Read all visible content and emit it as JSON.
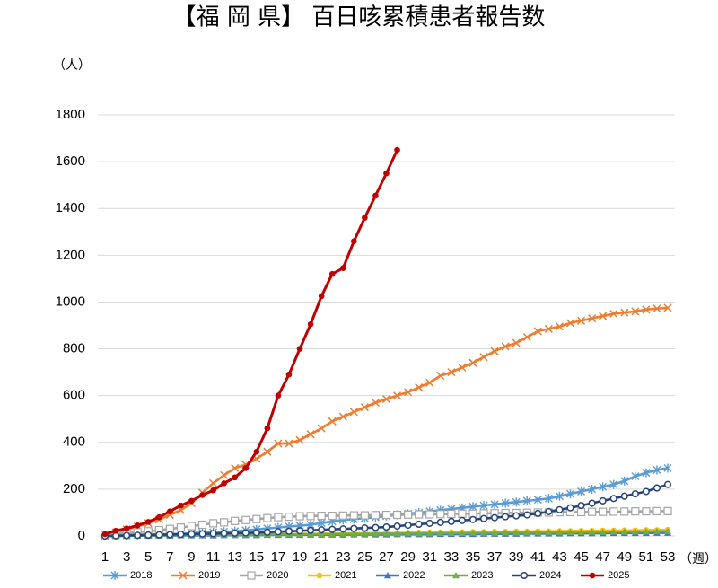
{
  "chart_data": {
    "type": "line",
    "title": "【福 岡 県】 百日咳累積患者報告数",
    "ylabel": "（人）",
    "xlabel": "（週）",
    "x": [
      1,
      2,
      3,
      4,
      5,
      6,
      7,
      8,
      9,
      10,
      11,
      12,
      13,
      14,
      15,
      16,
      17,
      18,
      19,
      20,
      21,
      22,
      23,
      24,
      25,
      26,
      27,
      28,
      29,
      30,
      31,
      32,
      33,
      34,
      35,
      36,
      37,
      38,
      39,
      40,
      41,
      42,
      43,
      44,
      45,
      46,
      47,
      48,
      49,
      50,
      51,
      52,
      53
    ],
    "xlim": [
      1,
      53
    ],
    "xticks": [
      1,
      3,
      5,
      7,
      9,
      11,
      13,
      15,
      17,
      19,
      21,
      23,
      25,
      27,
      29,
      31,
      33,
      35,
      37,
      39,
      41,
      43,
      45,
      47,
      49,
      51,
      53
    ],
    "ylim": [
      0,
      1800
    ],
    "yticks": [
      0,
      200,
      400,
      600,
      800,
      1000,
      1200,
      1400,
      1600,
      1800
    ],
    "grid": true,
    "legend": "bottom",
    "series": [
      {
        "name": "2018",
        "color": "#5b9bd5",
        "marker": "star",
        "values": [
          2,
          3,
          4,
          5,
          6,
          7,
          8,
          10,
          12,
          14,
          16,
          18,
          20,
          24,
          28,
          32,
          36,
          40,
          44,
          48,
          55,
          62,
          68,
          72,
          76,
          80,
          85,
          90,
          95,
          100,
          105,
          110,
          115,
          120,
          125,
          130,
          135,
          140,
          145,
          150,
          155,
          160,
          170,
          180,
          190,
          200,
          210,
          220,
          235,
          255,
          270,
          282,
          290
        ]
      },
      {
        "name": "2019",
        "color": "#ed7d31",
        "marker": "x",
        "values": [
          5,
          15,
          28,
          40,
          55,
          70,
          90,
          110,
          140,
          185,
          225,
          260,
          290,
          305,
          330,
          360,
          395,
          395,
          410,
          435,
          460,
          490,
          510,
          530,
          550,
          570,
          585,
          600,
          615,
          635,
          655,
          685,
          700,
          720,
          740,
          765,
          790,
          810,
          825,
          850,
          875,
          885,
          895,
          910,
          920,
          930,
          940,
          950,
          955,
          960,
          968,
          972,
          975
        ]
      },
      {
        "name": "2020",
        "color": "#a5a5a5",
        "marker": "square",
        "values": [
          5,
          8,
          12,
          16,
          20,
          25,
          30,
          36,
          42,
          48,
          54,
          58,
          64,
          68,
          72,
          76,
          80,
          82,
          84,
          85,
          86,
          86,
          87,
          88,
          88,
          89,
          90,
          90,
          91,
          92,
          92,
          93,
          94,
          95,
          95,
          96,
          97,
          98,
          98,
          99,
          100,
          100,
          101,
          102,
          102,
          103,
          103,
          104,
          104,
          105,
          105,
          106,
          106
        ]
      },
      {
        "name": "2021",
        "color": "#ffc000",
        "marker": "dot",
        "values": [
          0,
          0,
          1,
          1,
          2,
          2,
          3,
          3,
          4,
          4,
          5,
          5,
          6,
          6,
          7,
          7,
          8,
          8,
          9,
          9,
          10,
          10,
          11,
          11,
          12,
          12,
          13,
          13,
          14,
          14,
          15,
          15,
          16,
          16,
          17,
          17,
          18,
          18,
          19,
          19,
          20,
          20,
          21,
          21,
          22,
          22,
          23,
          23,
          24,
          24,
          25,
          25,
          26
        ]
      },
      {
        "name": "2022",
        "color": "#4472c4",
        "marker": "triangle",
        "values": [
          0,
          0,
          0,
          1,
          1,
          1,
          1,
          2,
          2,
          2,
          2,
          3,
          3,
          3,
          3,
          4,
          4,
          4,
          4,
          5,
          5,
          5,
          5,
          6,
          6,
          6,
          6,
          7,
          7,
          7,
          7,
          8,
          8,
          8,
          8,
          9,
          9,
          9,
          9,
          10,
          10,
          10,
          10,
          11,
          11,
          11,
          11,
          12,
          12,
          12,
          12,
          13,
          13
        ]
      },
      {
        "name": "2023",
        "color": "#70ad47",
        "marker": "triangle",
        "values": [
          0,
          0,
          1,
          1,
          2,
          2,
          3,
          3,
          4,
          4,
          5,
          5,
          5,
          6,
          6,
          6,
          7,
          7,
          7,
          8,
          8,
          8,
          9,
          9,
          9,
          10,
          10,
          10,
          11,
          11,
          11,
          12,
          12,
          12,
          13,
          13,
          13,
          14,
          14,
          14,
          15,
          15,
          15,
          16,
          16,
          17,
          17,
          18,
          18,
          19,
          19,
          20,
          20
        ]
      },
      {
        "name": "2024",
        "color": "#264478",
        "marker": "circle",
        "values": [
          0,
          1,
          2,
          3,
          4,
          5,
          6,
          7,
          8,
          9,
          10,
          11,
          12,
          13,
          14,
          16,
          18,
          20,
          22,
          24,
          26,
          28,
          30,
          32,
          34,
          36,
          38,
          42,
          46,
          50,
          54,
          58,
          62,
          66,
          70,
          74,
          78,
          82,
          86,
          90,
          96,
          104,
          112,
          120,
          130,
          140,
          150,
          160,
          170,
          180,
          190,
          205,
          220
        ]
      },
      {
        "name": "2025",
        "color": "#c00000",
        "marker": "dot",
        "values": [
          8,
          22,
          32,
          45,
          60,
          80,
          105,
          130,
          150,
          175,
          195,
          225,
          250,
          290,
          360,
          460,
          600,
          690,
          800,
          905,
          1025,
          1120,
          1145,
          1260,
          1360,
          1455,
          1550,
          1650,
          null,
          null,
          null,
          null,
          null,
          null,
          null,
          null,
          null,
          null,
          null,
          null,
          null,
          null,
          null,
          null,
          null,
          null,
          null,
          null,
          null,
          null,
          null,
          null,
          null
        ]
      }
    ]
  }
}
